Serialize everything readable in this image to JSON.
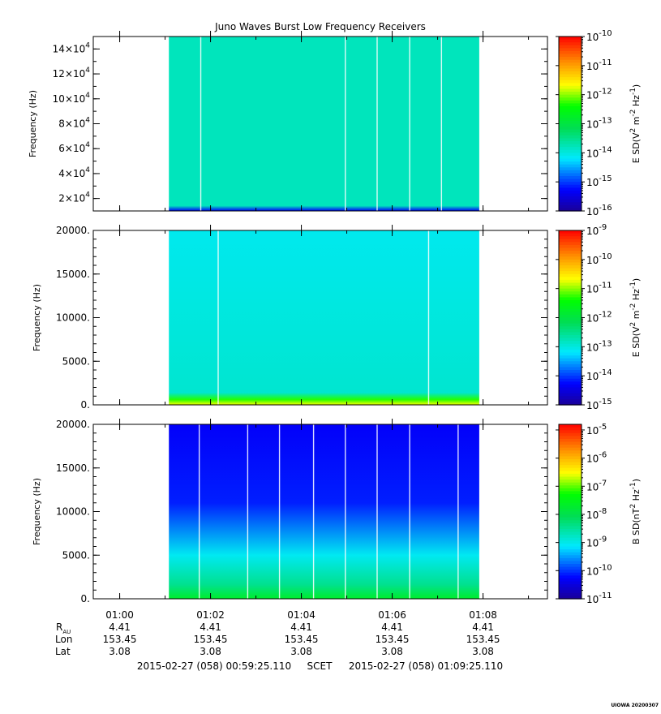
{
  "chart_data": {
    "type": "heatmap",
    "title": "Juno Waves Burst Low Frequency Receivers",
    "time_axis": {
      "tick_labels": [
        "01:00",
        "01:02",
        "01:04",
        "01:06",
        "01:08"
      ],
      "start": "2015-02-27 (058) 00:59:25.110",
      "end": "2015-02-27 (058) 01:09:25.110",
      "scale_label": "SCET",
      "data_start": "01:01:05",
      "data_end": "01:07:55"
    },
    "ephemeris": {
      "row_labels": [
        "R",
        "Lon",
        "Lat"
      ],
      "r_subscript": "AU",
      "rows": [
        [
          "4.41",
          "4.41",
          "4.41",
          "4.41",
          "4.41"
        ],
        [
          "153.45",
          "153.45",
          "153.45",
          "153.45",
          "153.45"
        ],
        [
          "3.08",
          "3.08",
          "3.08",
          "3.08",
          "3.08"
        ]
      ]
    },
    "panels": [
      {
        "ylabel": "Frequency (Hz)",
        "ylim": [
          10000,
          150000
        ],
        "ytick_mantissas": [
          "2",
          "4",
          "6",
          "8",
          "10",
          "12",
          "14"
        ],
        "ytick_base": "×10",
        "ytick_exp": "4",
        "zlabel": "E SD",
        "zunits_main": "(V",
        "zunits_rest": [
          [
            "2",
            "sup"
          ],
          [
            " m",
            "none"
          ],
          [
            "-2",
            "sup"
          ],
          [
            " Hz",
            "none"
          ],
          [
            "-1",
            "sup"
          ],
          [
            ")",
            "none"
          ]
        ],
        "zlim_exp": [
          -16,
          -10
        ],
        "colorbar_exponents": [
          "-10",
          "-11",
          "-12",
          "-13",
          "-14",
          "-15",
          "-16"
        ],
        "dominant_level_exp": -13.8,
        "gaps": [
          "01:01:47",
          "01:04:58",
          "01:05:40",
          "01:06:23",
          "01:07:05"
        ]
      },
      {
        "ylabel": "Frequency (Hz)",
        "ylim": [
          0,
          20000
        ],
        "ytick_labels": [
          "0.",
          "5000.",
          "10000.",
          "15000.",
          "20000."
        ],
        "zlabel": "E SD",
        "zunits_main": "(V",
        "zunits_rest": [
          [
            "2",
            "sup"
          ],
          [
            " m",
            "none"
          ],
          [
            "-2",
            "sup"
          ],
          [
            " Hz",
            "none"
          ],
          [
            "-1",
            "sup"
          ],
          [
            ")",
            "none"
          ]
        ],
        "zlim_exp": [
          -15,
          -9
        ],
        "colorbar_exponents": [
          "-9",
          "-10",
          "-11",
          "-12",
          "-13",
          "-14",
          "-15"
        ],
        "dominant_level_exp": -13.1,
        "gaps": [
          "01:02:10",
          "01:06:48"
        ]
      },
      {
        "ylabel": "Frequency (Hz)",
        "ylim": [
          0,
          20000
        ],
        "ytick_labels": [
          "0.",
          "5000.",
          "10000.",
          "15000.",
          "20000."
        ],
        "zlabel": "B SD",
        "zunits_main": "(nT",
        "zunits_rest": [
          [
            "2",
            "sup"
          ],
          [
            " Hz",
            "none"
          ],
          [
            "-1",
            "sup"
          ],
          [
            ")",
            "none"
          ]
        ],
        "zlim_exp": [
          -11,
          -4.8
        ],
        "colorbar_exponents": [
          "-5",
          "-6",
          "-7",
          "-8",
          "-9",
          "-10",
          "-11"
        ],
        "dominant_level_exp": -10.3,
        "gaps": [
          "01:01:45",
          "01:02:49",
          "01:03:31",
          "01:04:16",
          "01:04:58",
          "01:05:40",
          "01:06:23",
          "01:07:27"
        ]
      }
    ]
  },
  "footer": {
    "stamp": "UIOWA 20200307"
  }
}
